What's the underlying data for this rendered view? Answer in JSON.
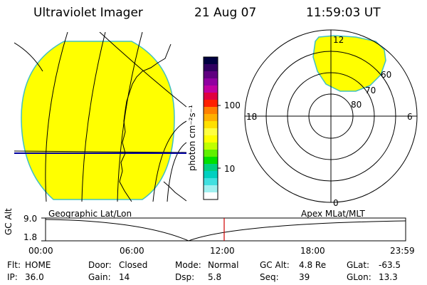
{
  "header": {
    "instrument": "Ultraviolet Imager",
    "date": "21 Aug 07",
    "time": "11:59:03 UT"
  },
  "colorbar": {
    "label": "photon cm⁻²s⁻¹",
    "ticks": [
      "100",
      "10"
    ],
    "colors": [
      "#000040",
      "#300060",
      "#600080",
      "#9000a0",
      "#c000a0",
      "#e00040",
      "#ff2000",
      "#ff8000",
      "#ffb000",
      "#ffe000",
      "#ffff40",
      "#ffff00",
      "#c0ff00",
      "#60f000",
      "#00e000",
      "#00d080",
      "#00d0c0",
      "#40e0e0",
      "#a0f0f0",
      "#ffffff"
    ]
  },
  "polar_plot": {
    "mlt_labels": {
      "top": "12",
      "left": "18",
      "right": "6",
      "bottom": "0"
    },
    "lat_labels": [
      "60",
      "70",
      "80"
    ],
    "fill_color": "#ffff00"
  },
  "map": {
    "fill_color": "#ffff00"
  },
  "timeline": {
    "y_label": "GC Alt",
    "y_ticks": [
      "9.0",
      "1.8"
    ],
    "left_caption": "Geographic Lat/Lon",
    "right_caption": "Apex MLat/MLT",
    "x_ticks": [
      "00:00",
      "06:00",
      "12:00",
      "18:00",
      "23:59"
    ],
    "marker_color": "#d00000"
  },
  "info": {
    "row1": [
      {
        "label": "Flt:",
        "value": "HOME"
      },
      {
        "label": "Door:",
        "value": "Closed"
      },
      {
        "label": "Mode:",
        "value": "Normal"
      },
      {
        "label": "GC Alt:",
        "value": "4.8 Re"
      },
      {
        "label": "GLat:",
        "value": "-63.5"
      }
    ],
    "row2": [
      {
        "label": "IP:",
        "value": "36.0"
      },
      {
        "label": "Gain:",
        "value": "14"
      },
      {
        "label": "Dsp:",
        "value": "5.8"
      },
      {
        "label": "Seq:",
        "value": "39"
      },
      {
        "label": "GLon:",
        "value": "13.3"
      }
    ]
  }
}
